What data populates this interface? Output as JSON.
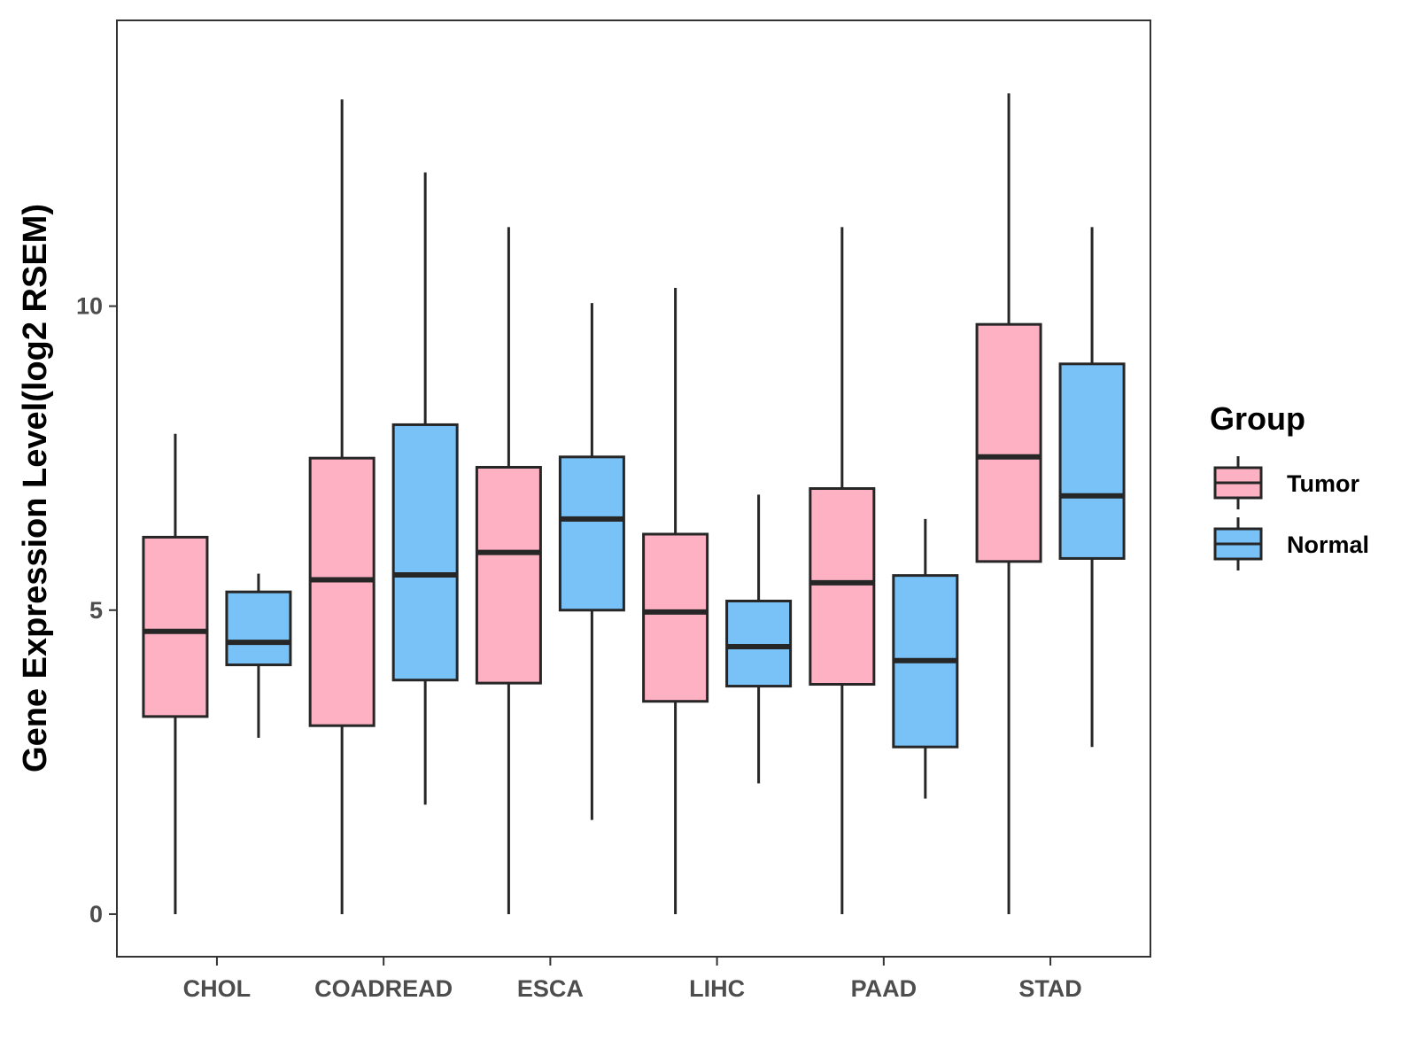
{
  "chart_data": {
    "type": "boxplot",
    "title": "",
    "xlabel": "",
    "ylabel": "Gene Expression Level(log2 RSEM)",
    "ylim": [
      -0.7,
      14.7
    ],
    "yticks": [
      0,
      5,
      10
    ],
    "grid": false,
    "legend_position": "right",
    "categories": [
      "CHOL",
      "COADREAD",
      "ESCA",
      "LIHC",
      "PAAD",
      "STAD"
    ],
    "legend": {
      "title": "Group",
      "entries": [
        "Tumor",
        "Normal"
      ]
    },
    "series": [
      {
        "name": "Tumor",
        "color": "#fdb1c2",
        "boxes": [
          {
            "min": 0.0,
            "q1": 3.25,
            "median": 4.65,
            "q3": 6.2,
            "max": 7.9
          },
          {
            "min": 0.0,
            "q1": 3.1,
            "median": 5.5,
            "q3": 7.5,
            "max": 13.4
          },
          {
            "min": 0.0,
            "q1": 3.8,
            "median": 5.95,
            "q3": 7.35,
            "max": 11.3
          },
          {
            "min": 0.0,
            "q1": 3.5,
            "median": 4.97,
            "q3": 6.25,
            "max": 10.3
          },
          {
            "min": 0.0,
            "q1": 3.78,
            "median": 5.45,
            "q3": 7.0,
            "max": 11.3
          },
          {
            "min": 0.0,
            "q1": 5.8,
            "median": 7.52,
            "q3": 9.7,
            "max": 13.5
          }
        ]
      },
      {
        "name": "Normal",
        "color": "#79c2f8",
        "boxes": [
          {
            "min": 2.9,
            "q1": 4.1,
            "median": 4.47,
            "q3": 5.3,
            "max": 5.6
          },
          {
            "min": 1.8,
            "q1": 3.85,
            "median": 5.58,
            "q3": 8.05,
            "max": 12.2
          },
          {
            "min": 1.55,
            "q1": 5.0,
            "median": 6.5,
            "q3": 7.52,
            "max": 10.05
          },
          {
            "min": 2.15,
            "q1": 3.75,
            "median": 4.4,
            "q3": 5.15,
            "max": 6.9
          },
          {
            "min": 1.9,
            "q1": 2.75,
            "median": 4.17,
            "q3": 5.57,
            "max": 6.5
          },
          {
            "min": 2.75,
            "q1": 5.85,
            "median": 6.88,
            "q3": 9.05,
            "max": 11.3
          }
        ]
      }
    ]
  }
}
